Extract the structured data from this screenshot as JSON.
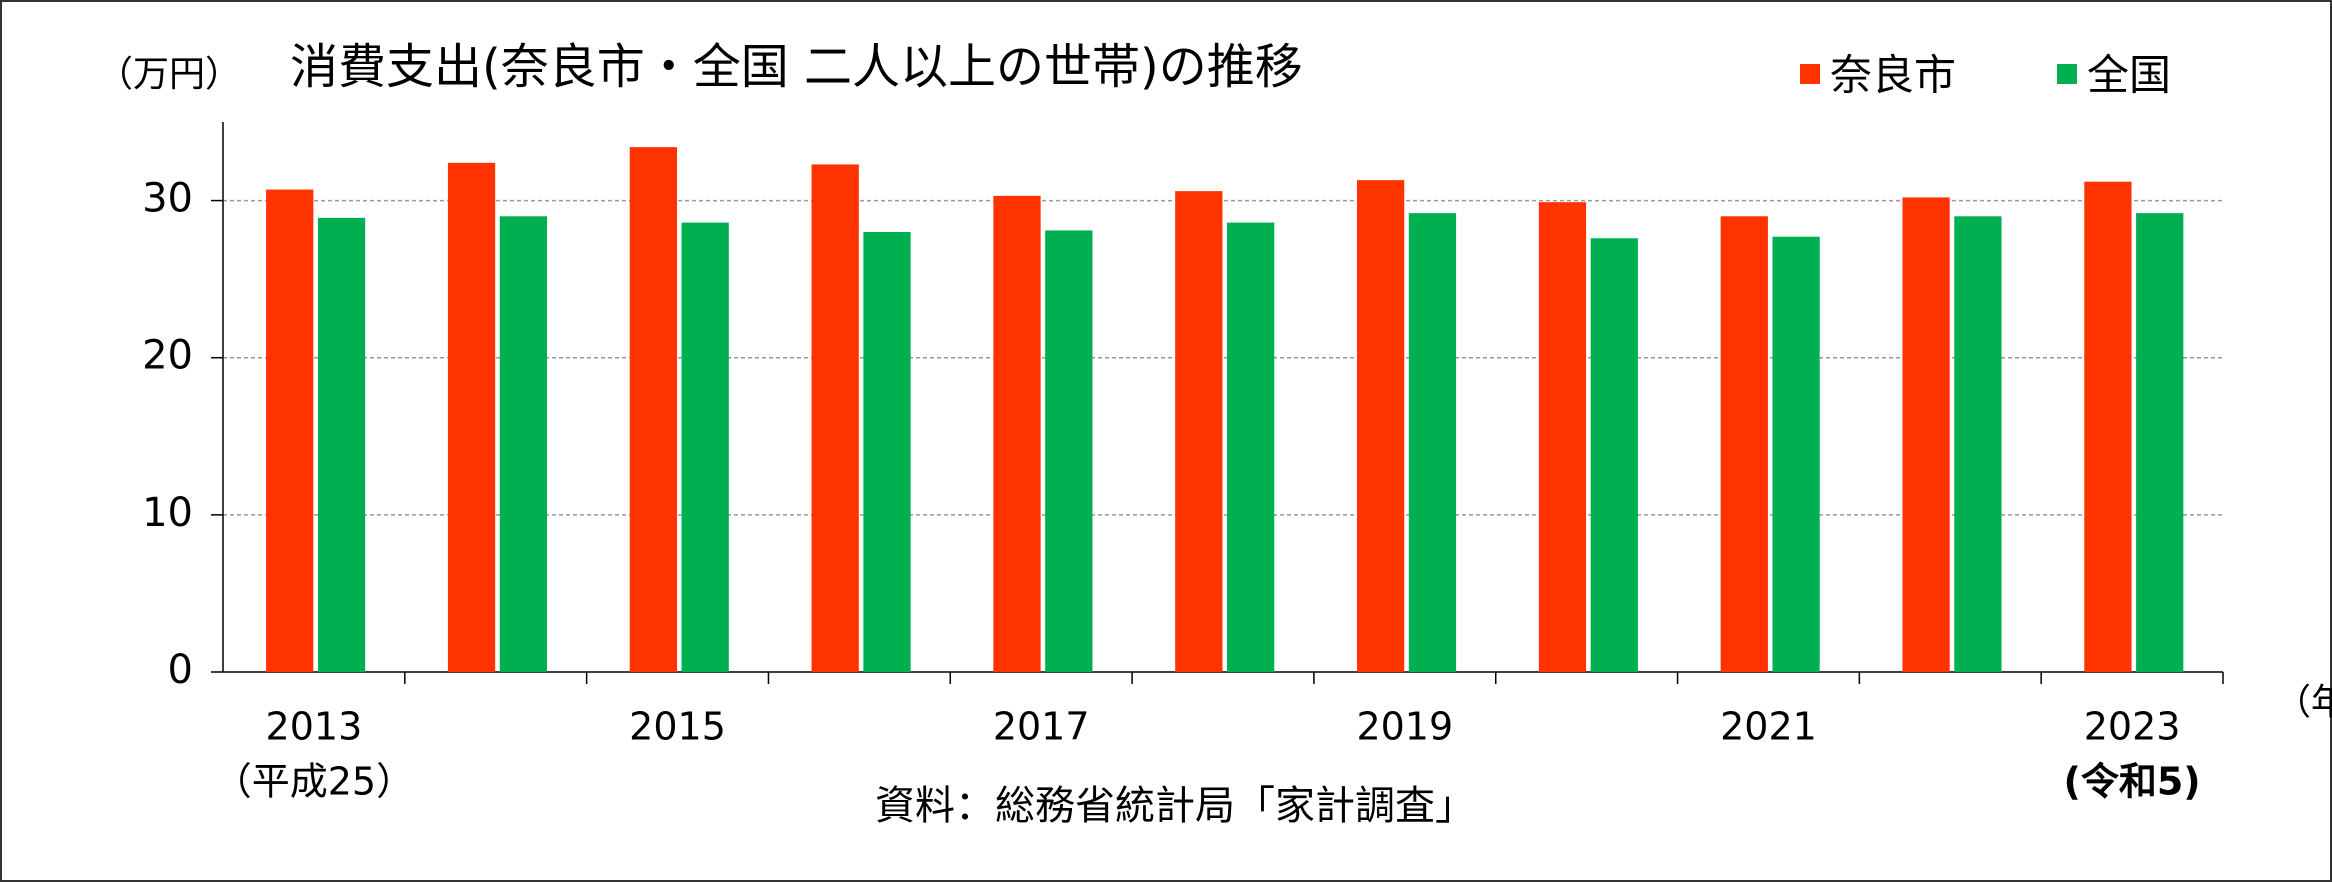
{
  "chart_data": {
    "type": "bar",
    "title": "消費支出(奈良市・全国 二人以上の世帯)の推移",
    "y_unit": "（万円）",
    "x_unit": "（年）",
    "source": "資料：総務省統計局「家計調査」",
    "categories": [
      "2013",
      null,
      "2015",
      null,
      "2017",
      null,
      "2019",
      null,
      "2021",
      null,
      "2023"
    ],
    "x_sublabels": [
      "（平成25）",
      null,
      null,
      null,
      null,
      null,
      null,
      null,
      null,
      null,
      "(令和5)"
    ],
    "series": [
      {
        "name": "奈良市",
        "color": "#ff3300",
        "values": [
          30.7,
          32.4,
          33.4,
          32.3,
          30.3,
          30.6,
          31.3,
          29.9,
          29.0,
          30.2,
          31.2
        ]
      },
      {
        "name": "全国",
        "color": "#00b050",
        "values": [
          28.9,
          29.0,
          28.6,
          28.0,
          28.1,
          28.6,
          29.2,
          27.6,
          27.7,
          29.0,
          29.2
        ]
      }
    ],
    "ylim": [
      0,
      35
    ],
    "yticks": [
      0,
      10,
      20,
      30
    ],
    "grid": true,
    "legend": "top-right"
  }
}
